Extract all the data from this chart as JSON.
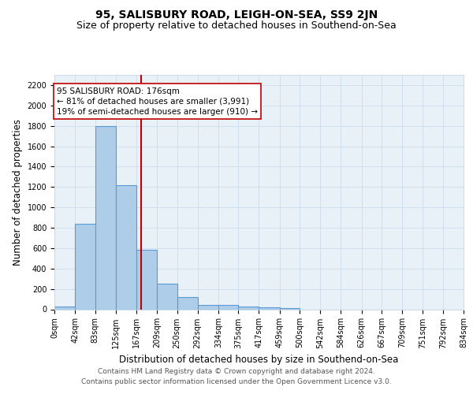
{
  "title": "95, SALISBURY ROAD, LEIGH-ON-SEA, SS9 2JN",
  "subtitle": "Size of property relative to detached houses in Southend-on-Sea",
  "xlabel": "Distribution of detached houses by size in Southend-on-Sea",
  "ylabel": "Number of detached properties",
  "footnote1": "Contains HM Land Registry data © Crown copyright and database right 2024.",
  "footnote2": "Contains public sector information licensed under the Open Government Licence v3.0.",
  "bar_edges": [
    0,
    42,
    83,
    125,
    167,
    209,
    250,
    292,
    334,
    375,
    417,
    459,
    500,
    542,
    584,
    626,
    667,
    709,
    751,
    792,
    834
  ],
  "bar_heights": [
    25,
    840,
    1800,
    1215,
    580,
    255,
    120,
    45,
    40,
    30,
    18,
    10,
    0,
    0,
    0,
    0,
    0,
    0,
    0,
    0
  ],
  "bar_color": "#aecde8",
  "bar_edgecolor": "#5b9bd5",
  "bar_linewidth": 0.8,
  "vline_x": 176,
  "vline_color": "#c00000",
  "vline_linewidth": 1.5,
  "annotation_line1": "95 SALISBURY ROAD: 176sqm",
  "annotation_line2": "← 81% of detached houses are smaller (3,991)",
  "annotation_line3": "19% of semi-detached houses are larger (910) →",
  "annotation_box_edgecolor": "#c00000",
  "annotation_box_facecolor": "white",
  "ylim": [
    0,
    2300
  ],
  "yticks": [
    0,
    200,
    400,
    600,
    800,
    1000,
    1200,
    1400,
    1600,
    1800,
    2000,
    2200
  ],
  "xlim": [
    0,
    834
  ],
  "xtick_labels": [
    "0sqm",
    "42sqm",
    "83sqm",
    "125sqm",
    "167sqm",
    "209sqm",
    "250sqm",
    "292sqm",
    "334sqm",
    "375sqm",
    "417sqm",
    "459sqm",
    "500sqm",
    "542sqm",
    "584sqm",
    "626sqm",
    "667sqm",
    "709sqm",
    "751sqm",
    "792sqm",
    "834sqm"
  ],
  "grid_color": "#c8d8e8",
  "background_color": "#e8f0f8",
  "fig_background": "#ffffff",
  "title_fontsize": 10,
  "subtitle_fontsize": 9,
  "axis_label_fontsize": 8.5,
  "tick_fontsize": 7,
  "annotation_fontsize": 7.5,
  "footnote_fontsize": 6.5
}
